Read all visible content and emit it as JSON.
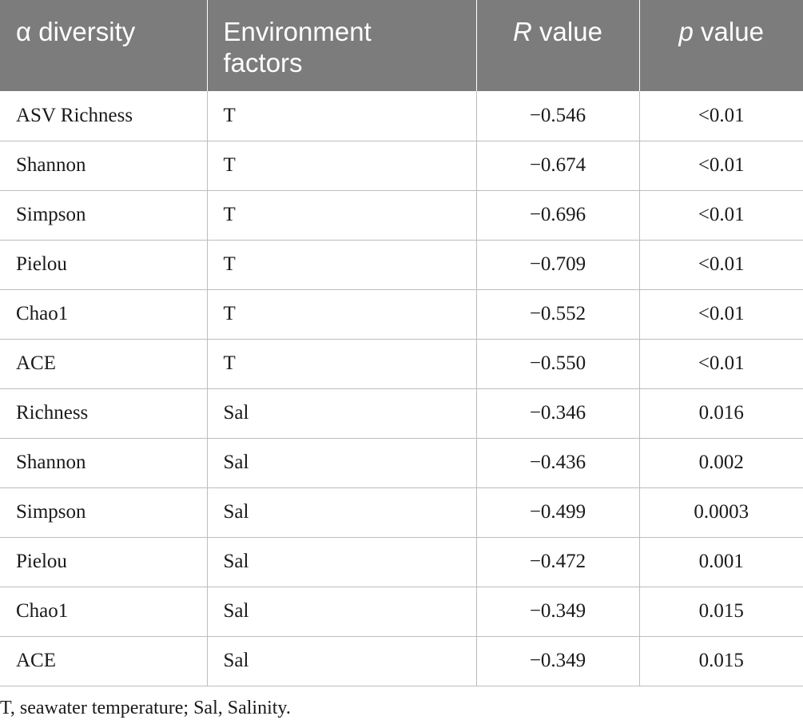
{
  "table": {
    "headers": {
      "alpha_diversity": "α diversity",
      "environment_factors_line1": "Environment",
      "environment_factors_line2": "factors",
      "r_symbol": "R",
      "r_suffix": " value",
      "p_symbol": "p",
      "p_suffix": " value"
    },
    "rows": [
      {
        "diversity": "ASV Richness",
        "factor": "T",
        "r": "−0.546",
        "p": "<0.01"
      },
      {
        "diversity": "Shannon",
        "factor": "T",
        "r": "−0.674",
        "p": "<0.01"
      },
      {
        "diversity": "Simpson",
        "factor": "T",
        "r": "−0.696",
        "p": "<0.01"
      },
      {
        "diversity": "Pielou",
        "factor": "T",
        "r": "−0.709",
        "p": "<0.01"
      },
      {
        "diversity": "Chao1",
        "factor": "T",
        "r": "−0.552",
        "p": "<0.01"
      },
      {
        "diversity": "ACE",
        "factor": "T",
        "r": "−0.550",
        "p": "<0.01"
      },
      {
        "diversity": "Richness",
        "factor": "Sal",
        "r": "−0.346",
        "p": "0.016"
      },
      {
        "diversity": "Shannon",
        "factor": "Sal",
        "r": "−0.436",
        "p": "0.002"
      },
      {
        "diversity": "Simpson",
        "factor": "Sal",
        "r": "−0.499",
        "p": "0.0003"
      },
      {
        "diversity": "Pielou",
        "factor": "Sal",
        "r": "−0.472",
        "p": "0.001"
      },
      {
        "diversity": "Chao1",
        "factor": "Sal",
        "r": "−0.349",
        "p": "0.015"
      },
      {
        "diversity": "ACE",
        "factor": "Sal",
        "r": "−0.349",
        "p": "0.015"
      }
    ]
  },
  "footnote": "T, seawater temperature; Sal, Salinity.",
  "colors": {
    "header_background": "#7c7c7c",
    "header_text": "#ffffff",
    "grid_line": "#bdbdbd"
  }
}
